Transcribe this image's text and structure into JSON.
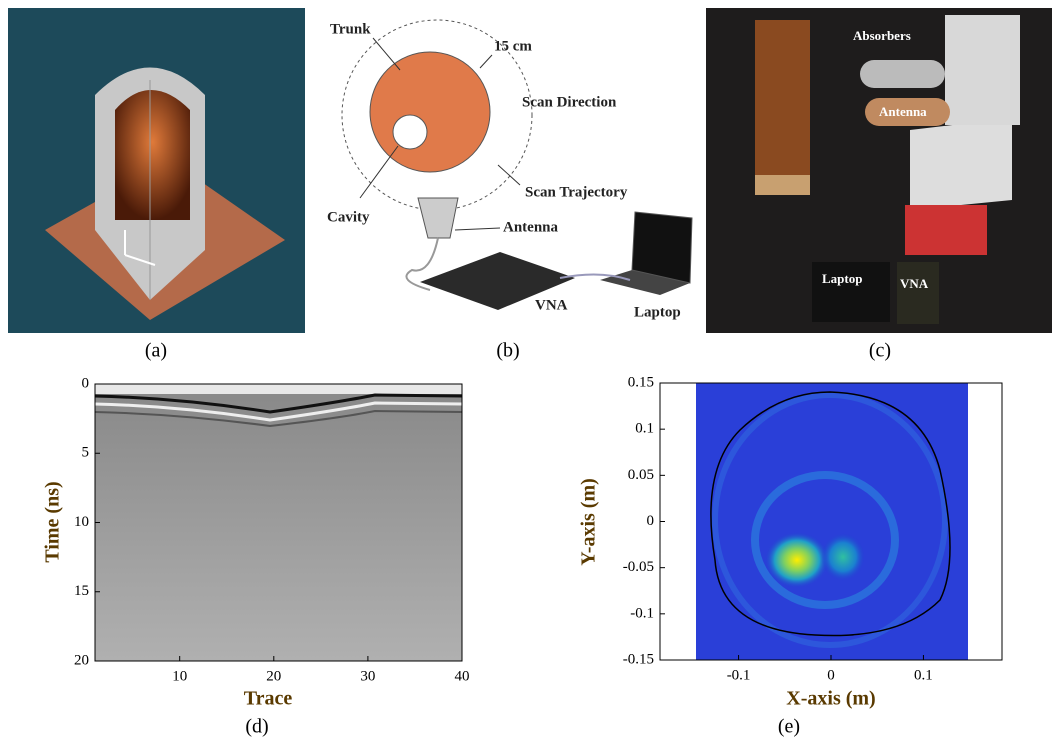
{
  "panels": [
    {
      "label": "(a)"
    },
    {
      "label": "(b)"
    },
    {
      "label": "(c)"
    },
    {
      "label": "(d)"
    },
    {
      "label": "(e)"
    }
  ],
  "diagram": {
    "labels": [
      "Trunk",
      "15 cm",
      "Scan Direction",
      "Cavity",
      "Scan Trajectory",
      "Antenna",
      "VNA",
      "Laptop"
    ]
  },
  "photo": {
    "labels": [
      "Absorbers",
      "Antenna",
      "Laptop",
      "VNA"
    ]
  },
  "radargram": {
    "xlabel": "Trace",
    "ylabel": "Time (ns)",
    "xlim": [
      1,
      40
    ],
    "ylim": [
      0,
      20
    ],
    "xticks": [
      10,
      20,
      30,
      40
    ],
    "yticks": [
      0,
      5,
      10,
      15,
      20
    ]
  },
  "image": {
    "xlabel": "X-axis (m)",
    "ylabel": "Y-axis (m)",
    "xlim": [
      -0.185,
      0.185
    ],
    "ylim": [
      -0.15,
      0.15
    ],
    "xticks": [
      -0.1,
      0,
      0.1
    ],
    "yticks": [
      -0.15,
      -0.1,
      -0.05,
      0,
      0.05,
      0.1,
      0.15
    ]
  }
}
